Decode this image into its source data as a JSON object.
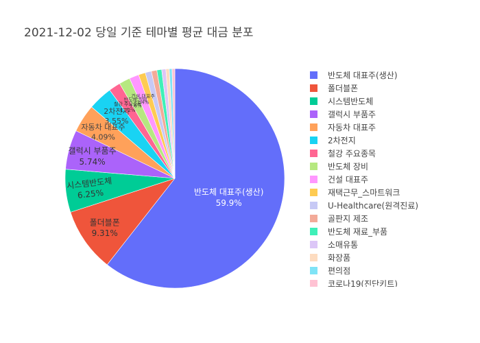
{
  "chart_data": {
    "type": "pie",
    "title": "2021-12-02 당일 기준 테마별 평균 대금 분포",
    "slices": [
      {
        "label": "반도체 대표주(생산)",
        "value": 59.9,
        "color": "#636efa",
        "text": "반도체 대표주(생산)",
        "pct": "59.9%"
      },
      {
        "label": "폴더블폰",
        "value": 9.31,
        "color": "#EF553B",
        "text": "폴더블폰",
        "pct": "9.31%"
      },
      {
        "label": "시스템반도체",
        "value": 6.25,
        "color": "#00cc96",
        "text": "시스템반도체",
        "pct": "6.25%"
      },
      {
        "label": "갤럭시 부품주",
        "value": 5.74,
        "color": "#ab63fa",
        "text": "갤럭시 부품주",
        "pct": "5.74%"
      },
      {
        "label": "자동차 대표주",
        "value": 4.09,
        "color": "#FFA15A",
        "text": "자동차 대표주",
        "pct": "4.09%"
      },
      {
        "label": "2차전지",
        "value": 3.55,
        "color": "#19d3f3",
        "text": "2차전지",
        "pct": "3.55%"
      },
      {
        "label": "철강 주요종목",
        "value": 1.72,
        "color": "#FF6692",
        "text": "철강 주요종목",
        "pct": "1.72%"
      },
      {
        "label": "반도체 장비",
        "value": 1.6,
        "color": "#B6E880",
        "text": "반도체 장비",
        "pct": "1.6%"
      },
      {
        "label": "건설 대표주",
        "value": 1.4,
        "color": "#FF97FF",
        "text": "건설 대표주",
        "pct": "1.4%"
      },
      {
        "label": "재택근무_스마트워크",
        "value": 1.0,
        "color": "#FECB52",
        "text": "",
        "pct": ""
      },
      {
        "label": "U-Healthcare(원격진료)",
        "value": 0.9,
        "color": "#c7c9f5",
        "text": "",
        "pct": ""
      },
      {
        "label": "골판지 제조",
        "value": 0.8,
        "color": "#f3aa98",
        "text": "",
        "pct": ""
      },
      {
        "label": "반도체 재료_부품",
        "value": 0.7,
        "color": "#3ff0b8",
        "text": "",
        "pct": ""
      },
      {
        "label": "소매유통",
        "value": 0.6,
        "color": "#dcc6f7",
        "text": "",
        "pct": ""
      },
      {
        "label": "화장품",
        "value": 0.5,
        "color": "#fddcc0",
        "text": "",
        "pct": ""
      },
      {
        "label": "편의점",
        "value": 0.4,
        "color": "#7fe3f6",
        "text": "",
        "pct": ""
      },
      {
        "label": "코로나19(진단키트)",
        "value": 0.4,
        "color": "#ffc2d3",
        "text": "",
        "pct": ""
      }
    ],
    "legend_position": "right"
  }
}
